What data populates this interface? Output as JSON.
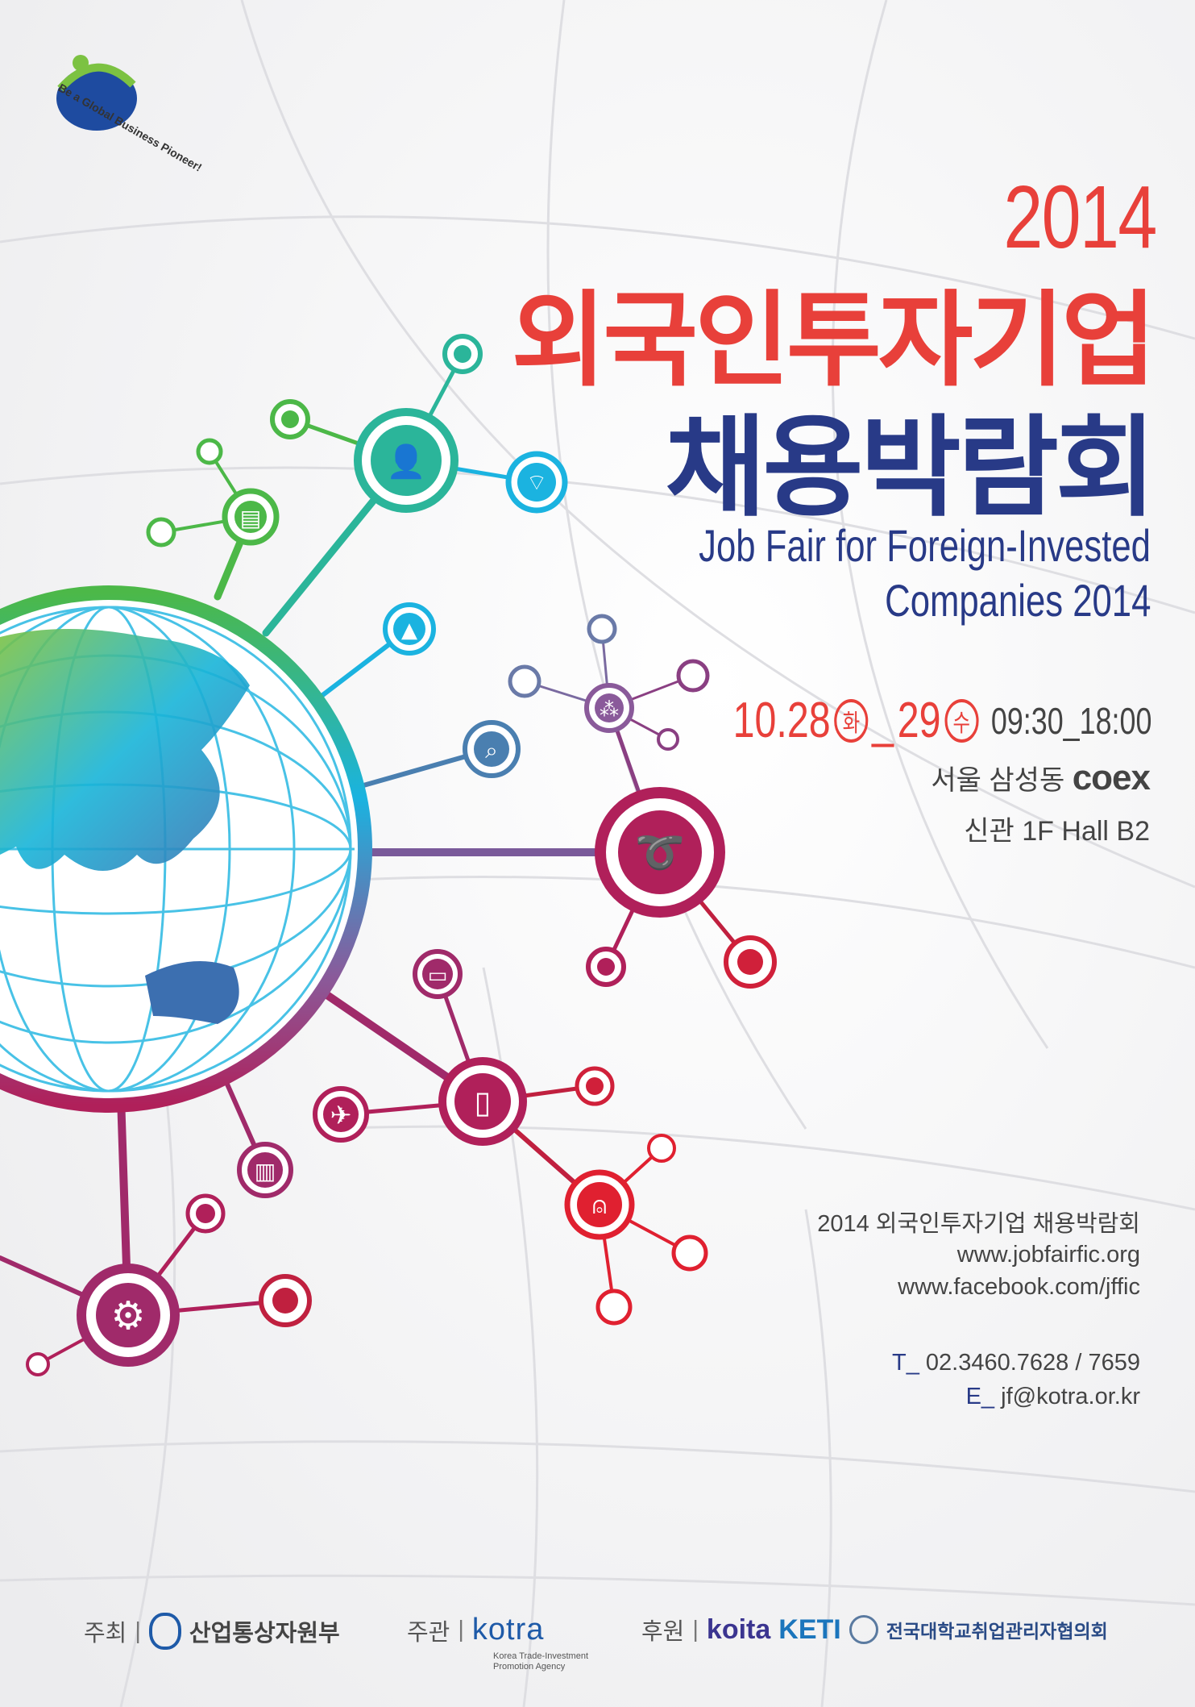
{
  "brand": {
    "slogan": "Be a Global Business Pioneer!"
  },
  "header": {
    "year": "2014",
    "title_line1": "외국인투자기업",
    "title_line2": "채용박람회",
    "english_line1": "Job Fair for Foreign-Invested",
    "english_line2": "Companies 2014"
  },
  "event": {
    "date_start": "10.28",
    "day_start": "화",
    "date_sep": "_",
    "date_end": "29",
    "day_end": "수",
    "time": "09:30_18:00",
    "venue_line1": "서울 삼성동",
    "venue_brand": "coex",
    "venue_line2": "신관 1F Hall B2"
  },
  "contact": {
    "event_name": "2014 외국인투자기업 채용박람회",
    "website": "www.jobfairfic.org",
    "facebook": "www.facebook.com/jffic",
    "phone_label": "T_",
    "phone": "02.3460.7628 / 7659",
    "email_label": "E_",
    "email": "jf@kotra.or.kr"
  },
  "footer": {
    "host_label": "주최",
    "host": "산업통상자원부",
    "organizer_label": "주관",
    "organizer": "kotra",
    "organizer_sub1": "Korea Trade-Investment",
    "organizer_sub2": "Promotion Agency",
    "sponsor_label": "후원",
    "sponsor1": "koita",
    "sponsor2": "KETI",
    "sponsor3": "전국대학교취업관리자협의회",
    "separator": "|"
  },
  "icons": [
    "person-add-icon",
    "wifi-icon",
    "notebook-icon",
    "graduation-cap-icon",
    "search-globe-icon",
    "network-icon",
    "fair-logo-icon",
    "chat-icon",
    "smartphone-icon",
    "antenna-icon",
    "airplane-icon",
    "books-icon",
    "gears-icon"
  ],
  "colors": {
    "red": "#e8403a",
    "navy": "#283a87",
    "teal": "#2bb59a",
    "cyan": "#1bb3e0",
    "magenta": "#b0205a",
    "gray": "#444444"
  }
}
